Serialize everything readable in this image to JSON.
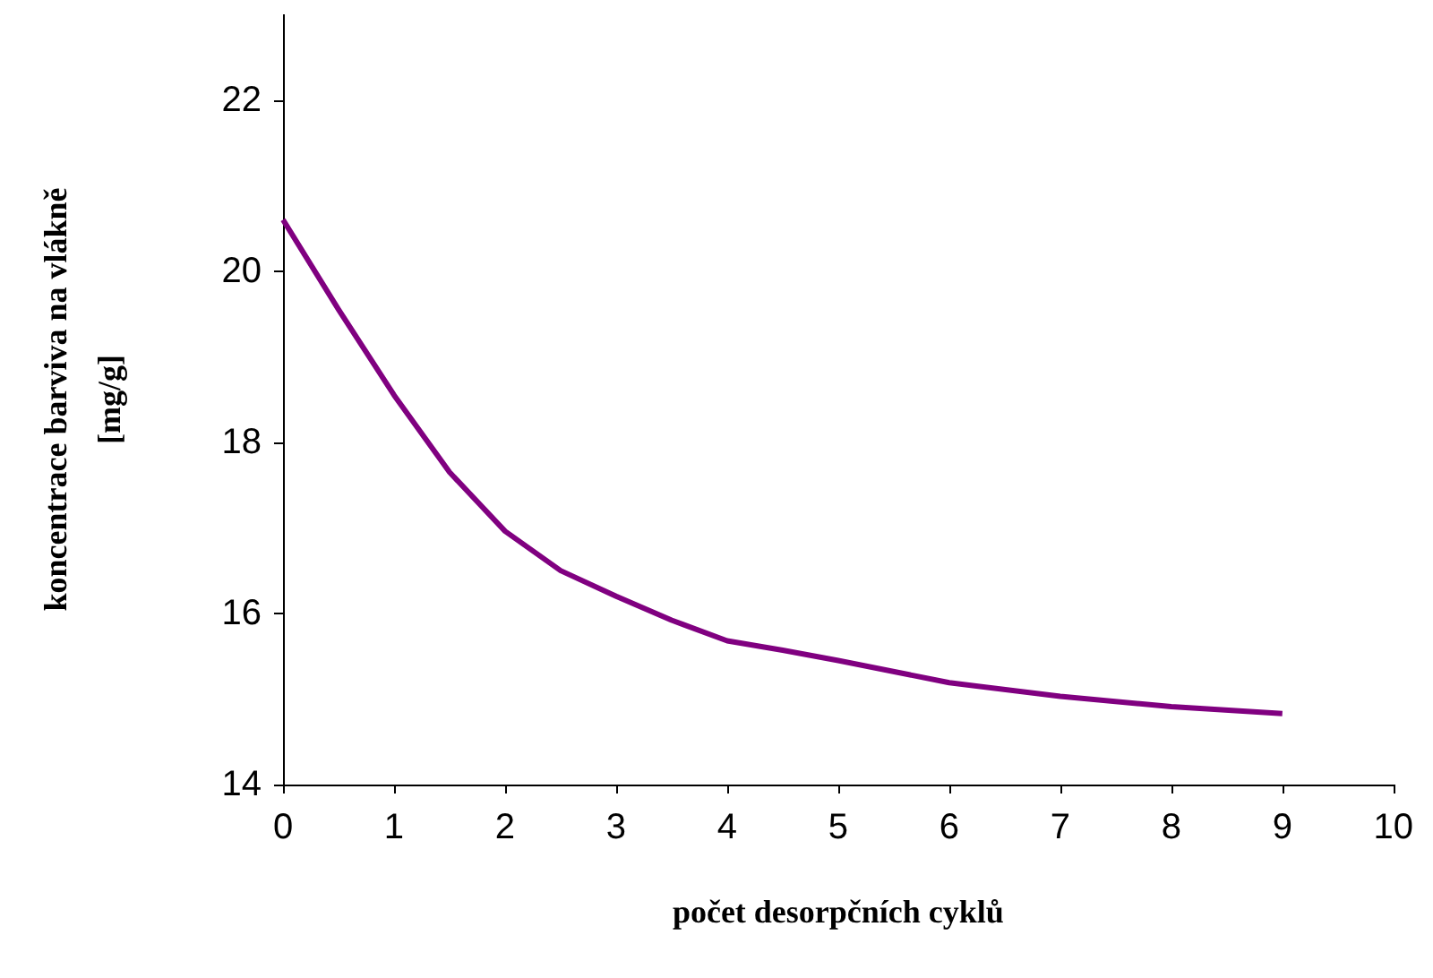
{
  "chart_data": {
    "type": "line",
    "xlabel": "počet desorpčních cyklů",
    "ylabel": "koncentrace barviva na vlákně\n[mg/g]",
    "x": [
      0,
      0.5,
      1,
      1.5,
      2,
      2.5,
      3,
      3.5,
      4,
      4.5,
      5,
      6,
      7,
      8,
      9
    ],
    "series": [
      {
        "color": "#800080",
        "values": [
          20.6,
          19.55,
          18.55,
          17.65,
          16.96,
          16.5,
          16.2,
          15.92,
          15.68,
          15.57,
          15.45,
          15.19,
          15.03,
          14.91,
          14.83
        ]
      }
    ],
    "xlim": [
      0,
      10
    ],
    "xticks": [
      0,
      1,
      2,
      3,
      4,
      5,
      6,
      7,
      8,
      9,
      10
    ],
    "ylim": [
      14,
      23
    ],
    "yticks": [
      14,
      16,
      18,
      20,
      22
    ],
    "grid": false,
    "marker": "none",
    "line_style": "solid"
  }
}
